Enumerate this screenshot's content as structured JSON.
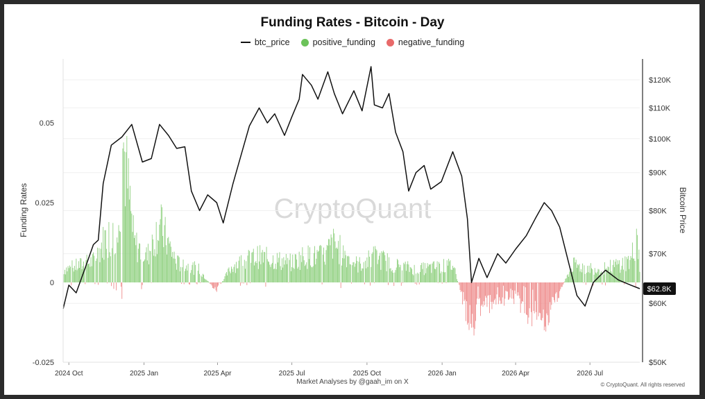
{
  "chart_data": {
    "type": "bar+line",
    "title": "Funding Rates - Bitcoin - Day",
    "legend": [
      {
        "label": "btc_price",
        "color": "#111111",
        "kind": "line"
      },
      {
        "label": "positive_funding",
        "color": "#6cc35a",
        "kind": "dot"
      },
      {
        "label": "negative_funding",
        "color": "#e86a6a",
        "kind": "dot"
      }
    ],
    "ylabel_left": "Funding Rates",
    "ylabel_right": "Bitcoin Price",
    "left_ticks": [
      "0.05",
      "0.025",
      "0",
      "-0.025"
    ],
    "left_tick_values": [
      0.05,
      0.025,
      0,
      -0.025
    ],
    "ylim_left": [
      -0.025,
      0.07
    ],
    "right_ticks": [
      "$120K",
      "$110K",
      "$100K",
      "$90K",
      "$80K",
      "$70K",
      "$60K",
      "$50K"
    ],
    "right_tick_values": [
      120000,
      110000,
      100000,
      90000,
      80000,
      70000,
      60000,
      50000
    ],
    "x_ticks": [
      "2024 Oct",
      "2025 Jan",
      "2025 Apr",
      "2025 Jul",
      "2025 Oct",
      "2026 Jan",
      "2026 Apr",
      "2026 Jul"
    ],
    "x_tick_dates": [
      "2024-10-01",
      "2025-01-01",
      "2025-04-01",
      "2025-07-01",
      "2025-10-01",
      "2026-01-01",
      "2026-04-01",
      "2026-07-01"
    ],
    "x_range": [
      "2024-09-24",
      "2026-08-31"
    ],
    "current_price_label": "$62.8K",
    "btc_price": [
      [
        "2024-09-24",
        59000
      ],
      [
        "2024-10-01",
        63500
      ],
      [
        "2024-10-10",
        62000
      ],
      [
        "2024-10-20",
        66500
      ],
      [
        "2024-10-31",
        72000
      ],
      [
        "2024-11-06",
        73000
      ],
      [
        "2024-11-12",
        87000
      ],
      [
        "2024-11-22",
        98000
      ],
      [
        "2024-12-05",
        100500
      ],
      [
        "2024-12-17",
        104500
      ],
      [
        "2024-12-30",
        93000
      ],
      [
        "2025-01-10",
        94000
      ],
      [
        "2025-01-20",
        104500
      ],
      [
        "2025-01-31",
        101000
      ],
      [
        "2025-02-10",
        97000
      ],
      [
        "2025-02-20",
        97500
      ],
      [
        "2025-02-28",
        85000
      ],
      [
        "2025-03-10",
        80000
      ],
      [
        "2025-03-20",
        84000
      ],
      [
        "2025-03-31",
        82000
      ],
      [
        "2025-04-08",
        77000
      ],
      [
        "2025-04-20",
        87000
      ],
      [
        "2025-05-01",
        96000
      ],
      [
        "2025-05-10",
        104000
      ],
      [
        "2025-05-22",
        110000
      ],
      [
        "2025-06-01",
        105000
      ],
      [
        "2025-06-10",
        108000
      ],
      [
        "2025-06-22",
        101000
      ],
      [
        "2025-07-01",
        107000
      ],
      [
        "2025-07-10",
        113000
      ],
      [
        "2025-07-14",
        122000
      ],
      [
        "2025-07-25",
        118000
      ],
      [
        "2025-08-02",
        113000
      ],
      [
        "2025-08-14",
        123000
      ],
      [
        "2025-08-22",
        115000
      ],
      [
        "2025-09-01",
        108000
      ],
      [
        "2025-09-15",
        116000
      ],
      [
        "2025-09-25",
        109000
      ],
      [
        "2025-10-06",
        125000
      ],
      [
        "2025-10-10",
        111000
      ],
      [
        "2025-10-20",
        110000
      ],
      [
        "2025-10-28",
        115000
      ],
      [
        "2025-11-05",
        102000
      ],
      [
        "2025-11-14",
        96000
      ],
      [
        "2025-11-21",
        85000
      ],
      [
        "2025-11-30",
        90000
      ],
      [
        "2025-12-10",
        92000
      ],
      [
        "2025-12-18",
        85500
      ],
      [
        "2025-12-31",
        87500
      ],
      [
        "2026-01-14",
        96000
      ],
      [
        "2026-01-25",
        89000
      ],
      [
        "2026-02-01",
        78000
      ],
      [
        "2026-02-06",
        64000
      ],
      [
        "2026-02-15",
        69000
      ],
      [
        "2026-02-25",
        65000
      ],
      [
        "2026-03-10",
        70000
      ],
      [
        "2026-03-20",
        68000
      ],
      [
        "2026-04-01",
        71000
      ],
      [
        "2026-04-14",
        74000
      ],
      [
        "2026-04-25",
        78000
      ],
      [
        "2026-05-06",
        82000
      ],
      [
        "2026-05-15",
        80000
      ],
      [
        "2026-05-25",
        76000
      ],
      [
        "2026-06-05",
        68000
      ],
      [
        "2026-06-15",
        61500
      ],
      [
        "2026-06-25",
        59500
      ],
      [
        "2026-07-05",
        64000
      ],
      [
        "2026-07-20",
        66500
      ],
      [
        "2026-08-05",
        64500
      ],
      [
        "2026-08-20",
        63500
      ],
      [
        "2026-08-31",
        62800
      ]
    ],
    "funding_rate_envelope": [
      [
        "2024-09-24",
        0.006
      ],
      [
        "2024-10-15",
        0.008
      ],
      [
        "2024-11-01",
        0.01
      ],
      [
        "2024-11-15",
        0.021
      ],
      [
        "2024-12-01",
        0.022
      ],
      [
        "2024-12-06",
        0.066
      ],
      [
        "2024-12-20",
        0.018
      ],
      [
        "2025-01-05",
        0.012
      ],
      [
        "2025-01-20",
        0.027
      ],
      [
        "2025-02-10",
        0.009
      ],
      [
        "2025-03-10",
        0.006
      ],
      [
        "2025-03-30",
        -0.004
      ],
      [
        "2025-04-20",
        0.008
      ],
      [
        "2025-05-20",
        0.012
      ],
      [
        "2025-07-01",
        0.009
      ],
      [
        "2025-07-15",
        0.012
      ],
      [
        "2025-08-10",
        0.012
      ],
      [
        "2025-08-20",
        0.018
      ],
      [
        "2025-09-20",
        0.008
      ],
      [
        "2025-10-06",
        0.011
      ],
      [
        "2025-10-11",
        0.012
      ],
      [
        "2025-11-05",
        0.008
      ],
      [
        "2025-12-01",
        0.006
      ],
      [
        "2026-01-15",
        0.008
      ],
      [
        "2026-02-05",
        -0.021
      ],
      [
        "2026-02-20",
        -0.008
      ],
      [
        "2026-03-05",
        -0.012
      ],
      [
        "2026-03-25",
        -0.005
      ],
      [
        "2026-04-15",
        -0.013
      ],
      [
        "2026-05-05",
        -0.02
      ],
      [
        "2026-05-20",
        -0.008
      ],
      [
        "2026-06-10",
        0.008
      ],
      [
        "2026-07-15",
        0.006
      ],
      [
        "2026-08-20",
        0.01
      ],
      [
        "2026-08-28",
        0.023
      ],
      [
        "2026-08-31",
        0.009
      ]
    ]
  },
  "watermark": "CryptoQuant",
  "footer": {
    "credit": "Market Analyses by @gaah_im on X",
    "copyright": "© CryptoQuant. All rights reserved"
  }
}
